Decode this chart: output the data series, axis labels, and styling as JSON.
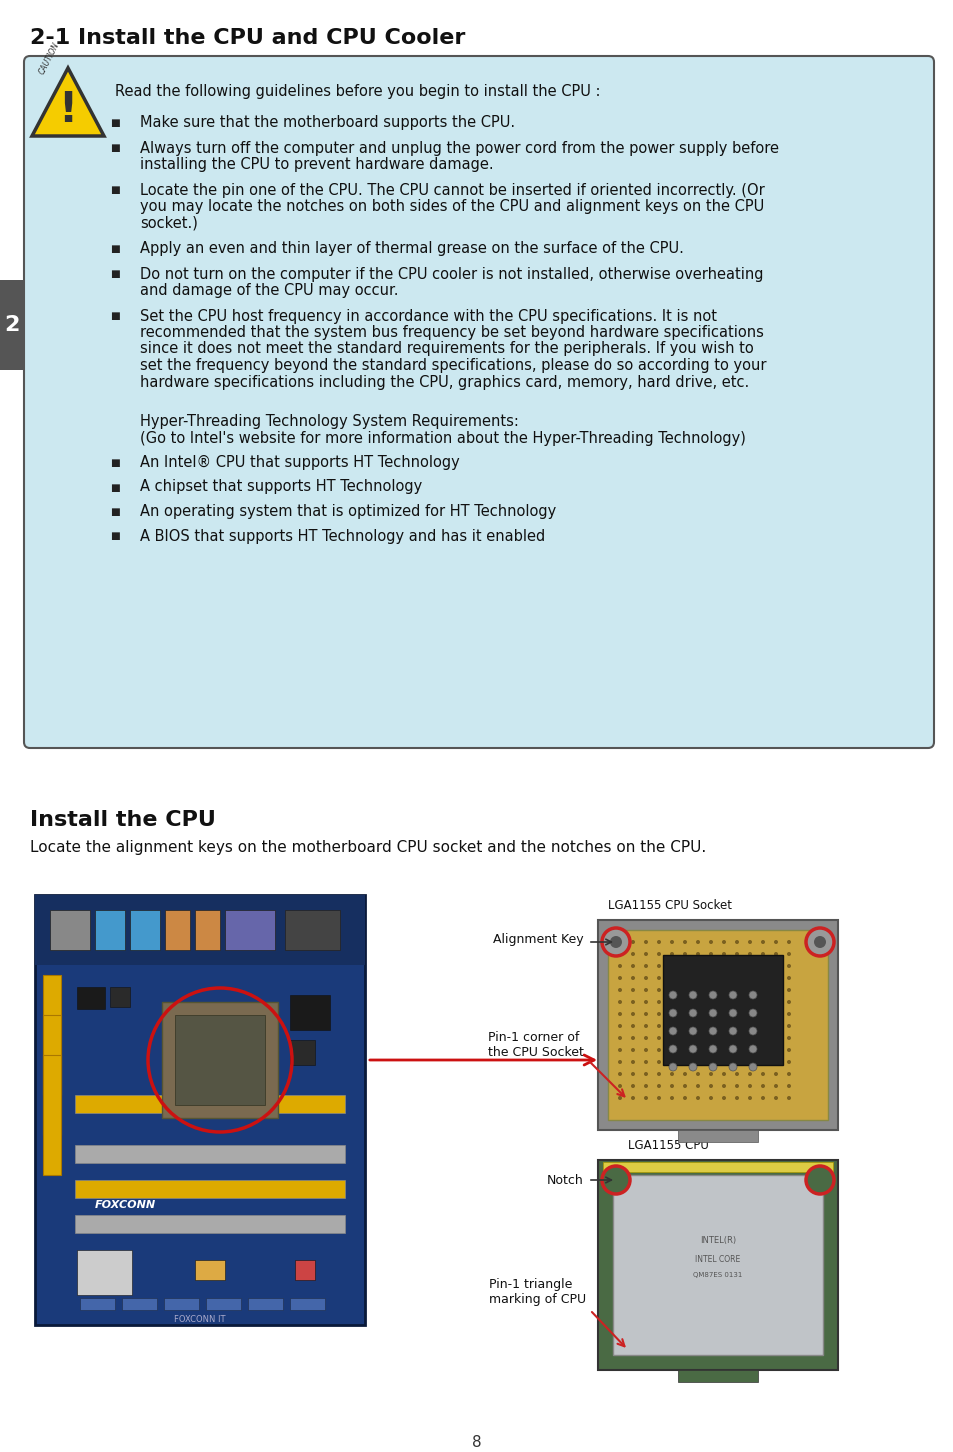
{
  "title": "2-1 Install the CPU and CPU Cooler",
  "bg_color": "#ffffff",
  "box_bg_color": "#cce8f0",
  "box_border_color": "#555555",
  "caution_text": "Read the following guidelines before you begin to install the CPU :",
  "bullet_items": [
    "Make sure that the motherboard supports the CPU.",
    "Always turn off the computer and unplug the power cord from the power supply before\ninstalling the CPU to prevent hardware damage.",
    "Locate the pin one of the CPU. The CPU cannot be inserted if oriented incorrectly. (Or\nyou may locate the notches on both sides of the CPU and alignment keys on the CPU\nsocket.)",
    "Apply an even and thin layer of thermal grease on the surface of the CPU.",
    "Do not turn on the computer if the CPU cooler is not installed, otherwise overheating\nand damage of the CPU may occur.",
    "Set the CPU host frequency in accordance with the CPU specifications. It is not\nrecommended that the system bus frequency be set beyond hardware specifications\nsince it does not meet the standard requirements for the peripherals. If you wish to\nset the frequency beyond the standard specifications, please do so according to your\nhardware specifications including the CPU, graphics card, memory, hard drive, etc."
  ],
  "hyper_threading_lines": [
    "Hyper-Threading Technology System Requirements:",
    "(Go to Intel's website for more information about the Hyper-Threading Technology)"
  ],
  "ht_bullets": [
    "An Intel® CPU that supports HT Technology",
    "A chipset that supports HT Technology",
    "An operating system that is optimized for HT Technology",
    "A BIOS that supports HT Technology and has it enabled"
  ],
  "install_title": "Install the CPU",
  "install_subtitle": "Locate the alignment keys on the motherboard CPU socket and the notches on the CPU.",
  "socket_label": "LGA1155 CPU Socket",
  "cpu_label": "LGA1155 CPU",
  "alignment_key_label": "Alignment Key",
  "pin1_corner_label": "Pin-1 corner of\nthe CPU Socket",
  "notch_label": "Notch",
  "pin1_triangle_label": "Pin-1 triangle\nmarking of CPU",
  "page_number": "8",
  "side_tab_color": "#555555",
  "side_tab_text": "2",
  "title_fontsize": 16,
  "body_fontsize": 10.5,
  "small_fontsize": 9
}
